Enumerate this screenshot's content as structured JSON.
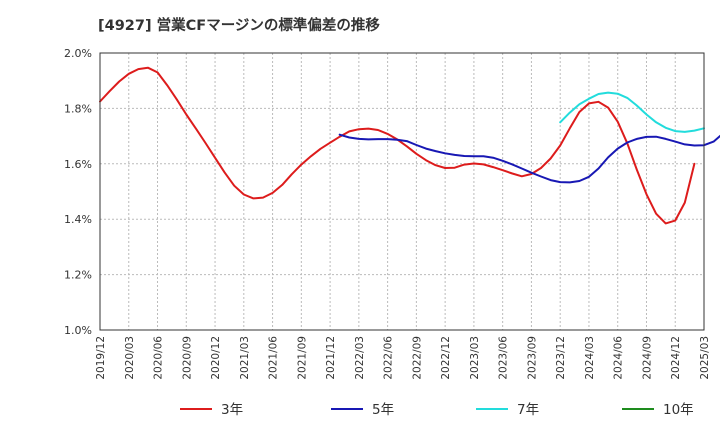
{
  "chart_data": {
    "type": "line",
    "title": "[4927]  営業CFマージンの標準偏差の推移",
    "xlabel": "",
    "ylabel": "",
    "ylim": [
      1.0,
      2.0
    ],
    "y_ticks": [
      "1.0%",
      "1.2%",
      "1.4%",
      "1.6%",
      "1.8%",
      "2.0%"
    ],
    "x_ticks": [
      "2019/12",
      "2020/03",
      "2020/06",
      "2020/09",
      "2020/12",
      "2021/03",
      "2021/06",
      "2021/09",
      "2021/12",
      "2022/03",
      "2022/06",
      "2022/09",
      "2022/12",
      "2023/03",
      "2023/06",
      "2023/09",
      "2023/12",
      "2024/03",
      "2024/06",
      "2024/09",
      "2024/12",
      "2025/03"
    ],
    "grid": true,
    "legend_position": "bottom",
    "series": [
      {
        "name": "3年",
        "color": "#dd1c1c",
        "points": [
          [
            "2019/12",
            1.825
          ],
          [
            "2020/01",
            1.862
          ],
          [
            "2020/02",
            1.897
          ],
          [
            "2020/03",
            1.925
          ],
          [
            "2020/04",
            1.942
          ],
          [
            "2020/05",
            1.947
          ],
          [
            "2020/06",
            1.93
          ],
          [
            "2020/07",
            1.884
          ],
          [
            "2020/08",
            1.833
          ],
          [
            "2020/09",
            1.778
          ],
          [
            "2020/10",
            1.727
          ],
          [
            "2020/11",
            1.675
          ],
          [
            "2020/12",
            1.622
          ],
          [
            "2021/01",
            1.569
          ],
          [
            "2021/02",
            1.521
          ],
          [
            "2021/03",
            1.489
          ],
          [
            "2021/04",
            1.475
          ],
          [
            "2021/05",
            1.478
          ],
          [
            "2021/06",
            1.495
          ],
          [
            "2021/07",
            1.524
          ],
          [
            "2021/08",
            1.562
          ],
          [
            "2021/09",
            1.597
          ],
          [
            "2021/10",
            1.627
          ],
          [
            "2021/11",
            1.654
          ],
          [
            "2021/12",
            1.676
          ],
          [
            "2022/01",
            1.698
          ],
          [
            "2022/02",
            1.717
          ],
          [
            "2022/03",
            1.725
          ],
          [
            "2022/04",
            1.727
          ],
          [
            "2022/05",
            1.722
          ],
          [
            "2022/06",
            1.708
          ],
          [
            "2022/07",
            1.688
          ],
          [
            "2022/08",
            1.663
          ],
          [
            "2022/09",
            1.636
          ],
          [
            "2022/10",
            1.613
          ],
          [
            "2022/11",
            1.595
          ],
          [
            "2022/12",
            1.585
          ],
          [
            "2023/01",
            1.586
          ],
          [
            "2023/02",
            1.597
          ],
          [
            "2023/03",
            1.601
          ],
          [
            "2023/04",
            1.598
          ],
          [
            "2023/05",
            1.588
          ],
          [
            "2023/06",
            1.577
          ],
          [
            "2023/07",
            1.565
          ],
          [
            "2023/08",
            1.555
          ],
          [
            "2023/09",
            1.563
          ],
          [
            "2023/10",
            1.585
          ],
          [
            "2023/11",
            1.619
          ],
          [
            "2023/12",
            1.666
          ],
          [
            "2024/01",
            1.728
          ],
          [
            "2024/02",
            1.787
          ],
          [
            "2024/03",
            1.818
          ],
          [
            "2024/04",
            1.824
          ],
          [
            "2024/05",
            1.803
          ],
          [
            "2024/06",
            1.752
          ],
          [
            "2024/07",
            1.674
          ],
          [
            "2024/08",
            1.578
          ],
          [
            "2024/09",
            1.49
          ],
          [
            "2024/10",
            1.42
          ],
          [
            "2024/11",
            1.385
          ],
          [
            "2024/12",
            1.395
          ],
          [
            "2025/01",
            1.46
          ],
          [
            "2025/02",
            1.6
          ]
        ]
      },
      {
        "name": "5年",
        "color": "#1818b4",
        "points": [
          [
            "2022/01",
            1.705
          ],
          [
            "2022/02",
            1.695
          ],
          [
            "2022/03",
            1.69
          ],
          [
            "2022/04",
            1.688
          ],
          [
            "2022/05",
            1.689
          ],
          [
            "2022/06",
            1.689
          ],
          [
            "2022/07",
            1.687
          ],
          [
            "2022/08",
            1.682
          ],
          [
            "2022/09",
            1.668
          ],
          [
            "2022/10",
            1.655
          ],
          [
            "2022/11",
            1.646
          ],
          [
            "2022/12",
            1.638
          ],
          [
            "2023/01",
            1.632
          ],
          [
            "2023/02",
            1.628
          ],
          [
            "2023/03",
            1.627
          ],
          [
            "2023/04",
            1.627
          ],
          [
            "2023/05",
            1.622
          ],
          [
            "2023/06",
            1.611
          ],
          [
            "2023/07",
            1.598
          ],
          [
            "2023/08",
            1.583
          ],
          [
            "2023/09",
            1.568
          ],
          [
            "2023/10",
            1.554
          ],
          [
            "2023/11",
            1.541
          ],
          [
            "2023/12",
            1.534
          ],
          [
            "2024/01",
            1.533
          ],
          [
            "2024/02",
            1.538
          ],
          [
            "2024/03",
            1.553
          ],
          [
            "2024/04",
            1.583
          ],
          [
            "2024/05",
            1.623
          ],
          [
            "2024/06",
            1.655
          ],
          [
            "2024/07",
            1.677
          ],
          [
            "2024/08",
            1.69
          ],
          [
            "2024/09",
            1.697
          ],
          [
            "2024/10",
            1.698
          ],
          [
            "2024/11",
            1.69
          ],
          [
            "2024/12",
            1.68
          ],
          [
            "2025/01",
            1.67
          ],
          [
            "2025/02",
            1.666
          ],
          [
            "2025/03",
            1.667
          ],
          [
            "2025/04",
            1.68
          ],
          [
            "2025/05",
            1.71
          ],
          [
            "2025/06",
            1.765
          ]
        ]
      },
      {
        "name": "7年",
        "color": "#22dcdc",
        "points": [
          [
            "2023/12",
            1.75
          ],
          [
            "2024/01",
            1.785
          ],
          [
            "2024/02",
            1.815
          ],
          [
            "2024/03",
            1.835
          ],
          [
            "2024/04",
            1.852
          ],
          [
            "2024/05",
            1.857
          ],
          [
            "2024/06",
            1.853
          ],
          [
            "2024/07",
            1.838
          ],
          [
            "2024/08",
            1.81
          ],
          [
            "2024/09",
            1.778
          ],
          [
            "2024/10",
            1.75
          ],
          [
            "2024/11",
            1.73
          ],
          [
            "2024/12",
            1.718
          ],
          [
            "2025/01",
            1.715
          ],
          [
            "2025/02",
            1.72
          ],
          [
            "2025/03",
            1.728
          ]
        ]
      },
      {
        "name": "10年",
        "color": "#1e8c1e",
        "points": []
      }
    ]
  }
}
